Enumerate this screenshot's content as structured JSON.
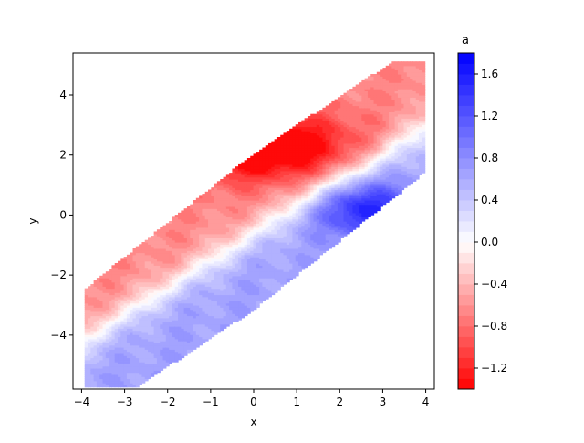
{
  "chart_data": {
    "type": "contourf",
    "title": "",
    "xlabel": "x",
    "ylabel": "y",
    "xlim": [
      -4.2,
      4.2
    ],
    "ylim": [
      -5.8,
      5.4
    ],
    "xticks": [
      -4,
      -3,
      -2,
      -1,
      0,
      1,
      2,
      3,
      4
    ],
    "xtick_labels": [
      "−4",
      "−3",
      "−2",
      "−1",
      "0",
      "1",
      "2",
      "3",
      "4"
    ],
    "yticks": [
      -4,
      -2,
      0,
      2,
      4
    ],
    "ytick_labels": [
      "−4",
      "−2",
      "0",
      "2",
      "4"
    ],
    "colorbar": {
      "title": "a",
      "range": [
        -1.4,
        1.8
      ],
      "levels": [
        -1.4,
        -1.3,
        -1.2,
        -1.1,
        -1.0,
        -0.9,
        -0.8,
        -0.7,
        -0.6,
        -0.5,
        -0.4,
        -0.3,
        -0.2,
        -0.1,
        0.0,
        0.1,
        0.2,
        0.3,
        0.4,
        0.5,
        0.6,
        0.7,
        0.8,
        0.9,
        1.0,
        1.1,
        1.2,
        1.3,
        1.4,
        1.5,
        1.6,
        1.7,
        1.8
      ],
      "ticks": [
        -1.2,
        -0.8,
        -0.4,
        0.0,
        0.4,
        0.8,
        1.2,
        1.6
      ],
      "tick_labels": [
        "−1.2",
        "−0.8",
        "−0.4",
        "0.0",
        "0.4",
        "0.8",
        "1.2",
        "1.6"
      ],
      "colormap": "bwr_r"
    },
    "field": {
      "description_of_shape": "diagonal band of data from lower-left to upper-right",
      "red_peak": {
        "x": 0.2,
        "y": 2.3,
        "value": -1.35
      },
      "blue_peak": {
        "x": 2.6,
        "y": 0.2,
        "value": 1.3
      },
      "transition_line": "roughly y = 0.9x - 0.6"
    },
    "grid": false
  }
}
